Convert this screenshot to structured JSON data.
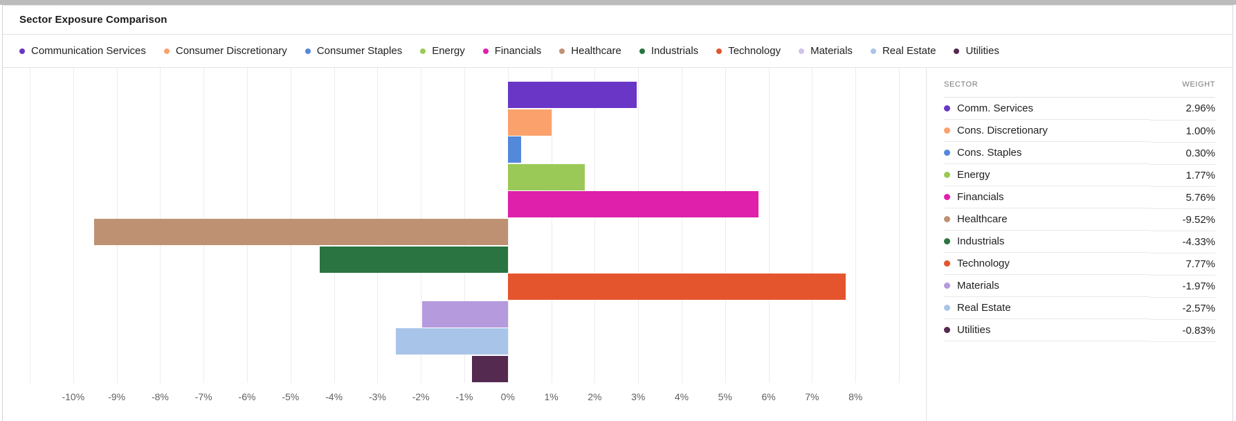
{
  "title": "Sector Exposure Comparison",
  "legend": [
    {
      "label": "Communication Services",
      "color": "#6936c6"
    },
    {
      "label": "Consumer Discretionary",
      "color": "#fba26c"
    },
    {
      "label": "Consumer Staples",
      "color": "#5389db"
    },
    {
      "label": "Energy",
      "color": "#9bc957"
    },
    {
      "label": "Financials",
      "color": "#df20ab"
    },
    {
      "label": "Healthcare",
      "color": "#bd9172"
    },
    {
      "label": "Industrials",
      "color": "#297440"
    },
    {
      "label": "Technology",
      "color": "#e4552d"
    },
    {
      "label": "Materials",
      "color": "#cfc2ec"
    },
    {
      "label": "Real Estate",
      "color": "#a9c4e9"
    },
    {
      "label": "Utilities",
      "color": "#542a50"
    }
  ],
  "table": {
    "headers": [
      "SECTOR",
      "WEIGHT"
    ],
    "rows": [
      {
        "sector": "Comm. Services",
        "weight": "2.96%",
        "color": "#6936c6"
      },
      {
        "sector": "Cons. Discretionary",
        "weight": "1.00%",
        "color": "#fba26c"
      },
      {
        "sector": "Cons. Staples",
        "weight": "0.30%",
        "color": "#5389db"
      },
      {
        "sector": "Energy",
        "weight": "1.77%",
        "color": "#9bc957"
      },
      {
        "sector": "Financials",
        "weight": "5.76%",
        "color": "#df20ab"
      },
      {
        "sector": "Healthcare",
        "weight": "-9.52%",
        "color": "#bd9172"
      },
      {
        "sector": "Industrials",
        "weight": "-4.33%",
        "color": "#297440"
      },
      {
        "sector": "Technology",
        "weight": "7.77%",
        "color": "#e4552d"
      },
      {
        "sector": "Materials",
        "weight": "-1.97%",
        "color": "#b59add"
      },
      {
        "sector": "Real Estate",
        "weight": "-2.57%",
        "color": "#a9c4e9"
      },
      {
        "sector": "Utilities",
        "weight": "-0.83%",
        "color": "#542a50"
      }
    ]
  },
  "chart_data": {
    "type": "bar",
    "orientation": "horizontal",
    "title": "Sector Exposure Comparison",
    "categories": [
      "Communication Services",
      "Consumer Discretionary",
      "Consumer Staples",
      "Energy",
      "Financials",
      "Healthcare",
      "Industrials",
      "Technology",
      "Materials",
      "Real Estate",
      "Utilities"
    ],
    "values": [
      2.96,
      1.0,
      0.3,
      1.77,
      5.76,
      -9.52,
      -4.33,
      7.77,
      -1.97,
      -2.57,
      -0.83
    ],
    "colors": [
      "#6936c6",
      "#fba26c",
      "#5389db",
      "#9bc957",
      "#df20ab",
      "#bd9172",
      "#297440",
      "#e4552d",
      "#b59add",
      "#a9c4e9",
      "#542a50"
    ],
    "xlabel": "",
    "ylabel": "",
    "xlim": [
      -11,
      9
    ],
    "x_tick_labels": [
      "-10%",
      "-9%",
      "-8%",
      "-7%",
      "-6%",
      "-5%",
      "-4%",
      "-3%",
      "-2%",
      "-1%",
      "0%",
      "1%",
      "2%",
      "3%",
      "4%",
      "5%",
      "6%",
      "7%",
      "8%"
    ],
    "grid": "vertical-only",
    "legend_position": "top"
  }
}
